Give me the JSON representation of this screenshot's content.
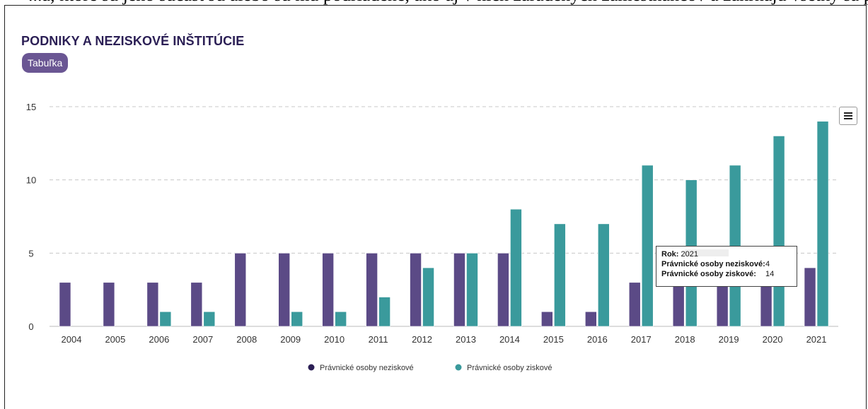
{
  "header": {
    "top_text": "...a, ktoré sú jeho súčasťou alebo sú mu podriadené, ako aj v nich zaradených zamestnancov a zahŕňajú všetky sa podniky (ústavy a inštitúcie)",
    "title": "PODNIKY A NEZISKOVÉ INŠTITÚCIE",
    "table_button": "Tabuľka",
    "menu_icon": "hamburger-menu-icon"
  },
  "chart_data": {
    "type": "bar",
    "categories": [
      "2004",
      "2005",
      "2006",
      "2007",
      "2008",
      "2009",
      "2010",
      "2011",
      "2012",
      "2013",
      "2014",
      "2015",
      "2016",
      "2017",
      "2018",
      "2019",
      "2020",
      "2021"
    ],
    "series": [
      {
        "name": "Právnické osoby neziskové",
        "color": "#5b4a86",
        "values": [
          3,
          3,
          3,
          3,
          5,
          5,
          5,
          5,
          5,
          5,
          5,
          1,
          1,
          3,
          3,
          3,
          3,
          4
        ]
      },
      {
        "name": "Právnické osoby ziskové",
        "color": "#3a9a9c",
        "values": [
          0,
          0,
          1,
          1,
          0,
          1,
          1,
          2,
          4,
          5,
          8,
          7,
          7,
          11,
          10,
          11,
          13,
          14
        ]
      }
    ],
    "y_ticks": [
      0,
      5,
      10,
      15
    ],
    "ylim": [
      0,
      15
    ],
    "grid": true,
    "legend_position": "bottom-center",
    "xlabel": "",
    "ylabel": ""
  },
  "tooltip": {
    "year_label": "Rok:",
    "year_value": "2021",
    "row1_label": "Právnické osoby neziskové:",
    "row1_value": "4",
    "row2_label": "Právnické osoby ziskové:",
    "row2_value": "14"
  }
}
